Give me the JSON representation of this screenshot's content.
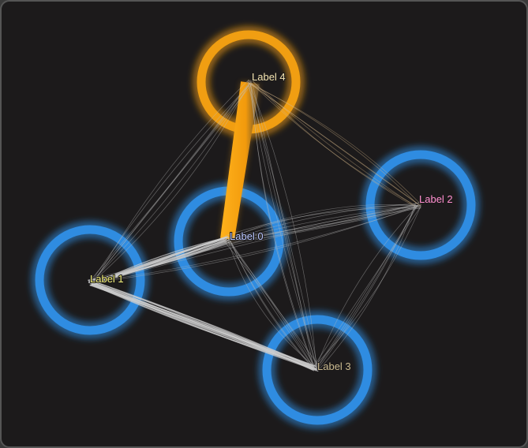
{
  "nodes": [
    {
      "id": 0,
      "label": "Label 0",
      "label_color": "#b9c6ff",
      "ring_color": "#2f8fe6"
    },
    {
      "id": 1,
      "label": "Label 1",
      "label_color": "#f3f07a",
      "ring_color": "#2f8fe6"
    },
    {
      "id": 2,
      "label": "Label 2",
      "label_color": "#ff8fd0",
      "ring_color": "#2f8fe6"
    },
    {
      "id": 3,
      "label": "Label 3",
      "label_color": "#c9b98f",
      "ring_color": "#2f8fe6"
    },
    {
      "id": 4,
      "label": "Label 4",
      "label_color": "#f3e3b0",
      "ring_color": "#f5a112"
    }
  ],
  "edges": [
    {
      "source": 4,
      "target": 0,
      "weight": "heavy",
      "color": "#f5a112"
    },
    {
      "source": 0,
      "target": 1,
      "weight": "medium",
      "color": "#cfcfcf"
    },
    {
      "source": 1,
      "target": 3,
      "weight": "medium",
      "color": "#cfcfcf"
    },
    {
      "source": 4,
      "target": 1,
      "weight": "light",
      "color": "#bdbdbd"
    },
    {
      "source": 4,
      "target": 2,
      "weight": "light",
      "color": "#d7b98a"
    },
    {
      "source": 0,
      "target": 2,
      "weight": "light",
      "color": "#bdbdbd"
    },
    {
      "source": 2,
      "target": 3,
      "weight": "light",
      "color": "#bdbdbd"
    },
    {
      "source": 0,
      "target": 3,
      "weight": "light",
      "color": "#bdbdbd"
    },
    {
      "source": 4,
      "target": 3,
      "weight": "light",
      "color": "#bdbdbd"
    },
    {
      "source": 1,
      "target": 2,
      "weight": "light",
      "color": "#bdbdbd"
    }
  ]
}
